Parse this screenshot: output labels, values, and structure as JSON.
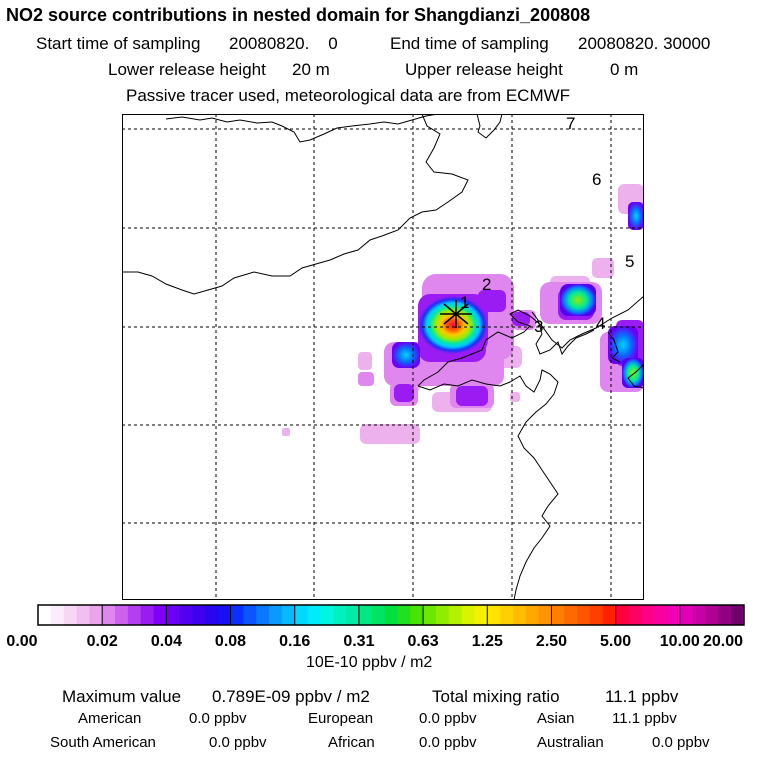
{
  "header": {
    "title": "NO2 source contributions in nested domain for Shangdianzi_200808",
    "start_label": "Start time of sampling",
    "start_value": "20080820.    0",
    "end_label": "End time of sampling",
    "end_value": "20080820. 30000",
    "lower_label": "Lower release height",
    "lower_value": "20 m",
    "upper_label": "Upper release height",
    "upper_value": "0 m",
    "tracer_note": "Passive tracer used, meteorological data are from ECMWF"
  },
  "map": {
    "region_labels": [
      "1",
      "2",
      "3",
      "4",
      "5",
      "6",
      "7"
    ],
    "colors": {
      "coast": "#000000",
      "grid": "#000000",
      "frame": "#000000"
    }
  },
  "colorbar": {
    "ticks": [
      "0.00",
      "0.02",
      "0.04",
      "0.08",
      "0.16",
      "0.31",
      "0.63",
      "1.25",
      "2.50",
      "5.00",
      "10.00",
      "20.00"
    ],
    "colors": [
      [
        "#ffffff",
        "#fbedfb",
        "#f6d7f6",
        "#f1bff1",
        "#eaa5ea"
      ],
      [
        "#df87ef",
        "#cc62ee",
        "#b43ff0",
        "#9a1cf2",
        "#8000f5"
      ],
      [
        "#6a00f5",
        "#5400f0",
        "#3e00ee",
        "#2a06f0",
        "#1a10f5"
      ],
      [
        "#0a30ff",
        "#0a55ff",
        "#0a78ff",
        "#0a9aff",
        "#0ab8ff"
      ],
      [
        "#00d8ff",
        "#00ecf8",
        "#00f6e0",
        "#00f0c0",
        "#00eca4"
      ],
      [
        "#00e884",
        "#00e464",
        "#00e040",
        "#20e020",
        "#46e400"
      ],
      [
        "#6ce800",
        "#90ec00",
        "#b4f000",
        "#d8f400",
        "#f4f000"
      ],
      [
        "#ffe400",
        "#ffd000",
        "#ffbc00",
        "#ffa800",
        "#ff9400"
      ],
      [
        "#ff8000",
        "#ff6a00",
        "#ff5400",
        "#ff3e00",
        "#ff2000"
      ],
      [
        "#ff0040",
        "#ff0064",
        "#ff0084",
        "#f800a0",
        "#f000b4"
      ],
      [
        "#e000b8",
        "#c800a8",
        "#b00094",
        "#900080",
        "#70006c"
      ]
    ],
    "unit_label": "10E-10 ppbv / m2"
  },
  "summary": {
    "max_label": "Maximum value",
    "max_value": "0.789E-09 ppbv / m2",
    "total_label": "Total mixing ratio",
    "total_value": "11.1 ppbv",
    "regions": [
      {
        "name": "American",
        "value": "0.0 ppbv"
      },
      {
        "name": "European",
        "value": "0.0 ppbv"
      },
      {
        "name": "Asian",
        "value": "11.1 ppbv"
      },
      {
        "name": "South American",
        "value": "0.0 ppbv"
      },
      {
        "name": "African",
        "value": "0.0 ppbv"
      },
      {
        "name": "Australian",
        "value": "0.0 ppbv"
      }
    ]
  }
}
